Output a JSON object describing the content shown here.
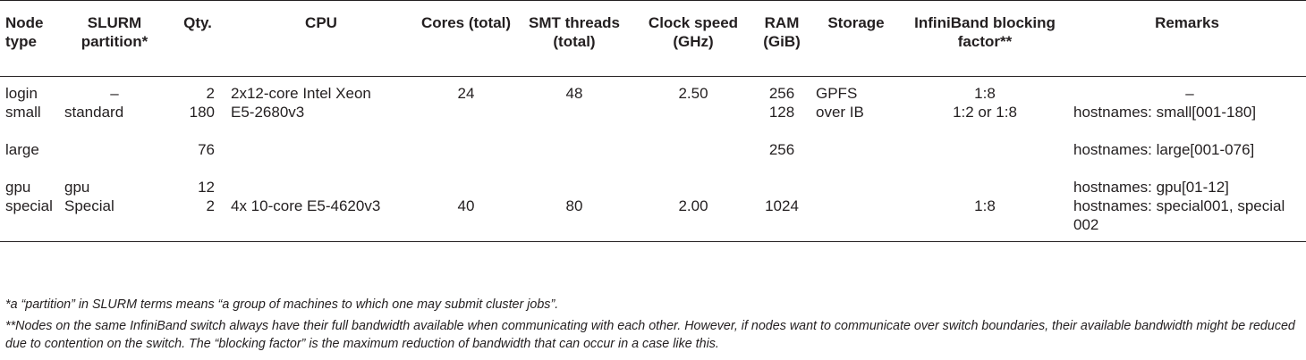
{
  "table": {
    "headers": {
      "node_type": "Node type",
      "slurm_partition": "SLURM partition*",
      "qty": "Qty.",
      "cpu": "CPU",
      "cores": "Cores (total)",
      "smt": "SMT threads (total)",
      "clock": "Clock speed (GHz)",
      "ram": "RAM (GiB)",
      "storage": "Storage",
      "infiniband": "InfiniBand blocking factor**",
      "remarks": "Remarks"
    },
    "rows": [
      {
        "node_type": "login",
        "partition": "–",
        "qty": "2",
        "cpu": "2x12-core Intel Xeon",
        "cores": "24",
        "smt": "48",
        "clock": "2.50",
        "ram": "256",
        "storage": "GPFS",
        "infiniband": "1:8",
        "remarks": "–"
      },
      {
        "node_type": "small",
        "partition": "standard",
        "qty": "180",
        "cpu": "E5-2680v3",
        "cores": "",
        "smt": "",
        "clock": "",
        "ram": "128",
        "storage": "over IB",
        "infiniband": "1:2 or 1:8",
        "remarks": "hostnames: small[001-180]"
      },
      {
        "node_type": "large",
        "partition": "",
        "qty": "76",
        "cpu": "",
        "cores": "",
        "smt": "",
        "clock": "",
        "ram": "256",
        "storage": "",
        "infiniband": "",
        "remarks": "hostnames: large[001-076]"
      },
      {
        "node_type": "gpu",
        "partition": "gpu",
        "qty": "12",
        "cpu": "",
        "cores": "",
        "smt": "",
        "clock": "",
        "ram": "",
        "storage": "",
        "infiniband": "",
        "remarks": "hostnames: gpu[01-12]"
      },
      {
        "node_type": "special",
        "partition": "Special",
        "qty": "2",
        "cpu": "4x 10-core E5-4620v3",
        "cores": "40",
        "smt": "80",
        "clock": "2.00",
        "ram": "1024",
        "storage": "",
        "infiniband": "1:8",
        "remarks": "hostnames: special001, special 002"
      }
    ]
  },
  "footnotes": {
    "note1": "*a “partition” in SLURM terms means “a group of machines to which one may submit cluster jobs”.",
    "note2": "**Nodes on the same InfiniBand switch always have their full bandwidth available when communicating with each other. However, if nodes want to communicate over switch boundaries, their available bandwidth might be reduced due to contention on the switch. The “blocking factor” is the maximum reduction of bandwidth that can occur in a case like this."
  }
}
